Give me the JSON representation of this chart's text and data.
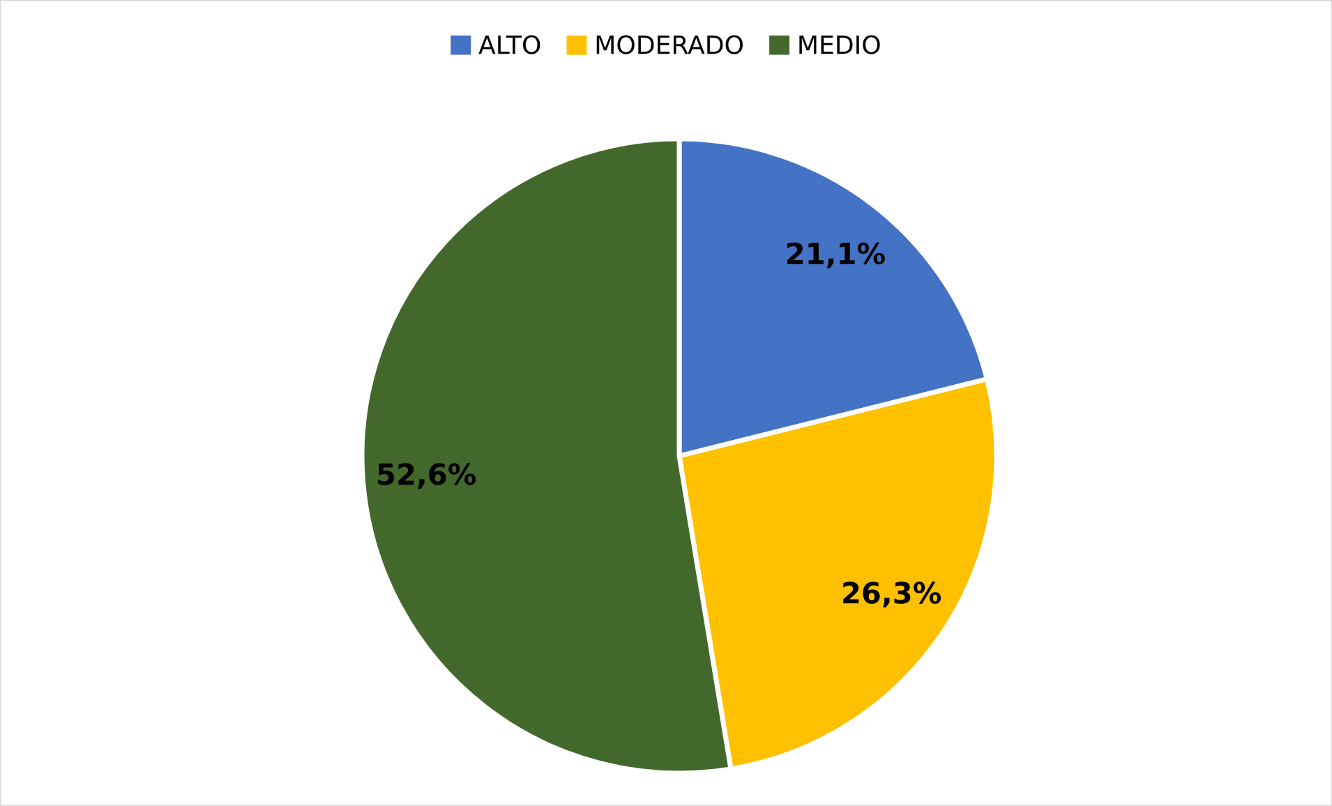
{
  "chart_data": {
    "type": "pie",
    "categories": [
      "ALTO",
      "MODERADO",
      "MEDIO"
    ],
    "values": [
      21.1,
      26.3,
      52.6
    ],
    "colors": [
      "#4472c4",
      "#ffc000",
      "#43682b"
    ],
    "value_labels": [
      "21,1%",
      "26,3%",
      "52,6%"
    ],
    "legend": "top"
  }
}
